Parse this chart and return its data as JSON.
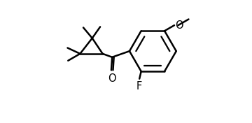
{
  "line_color": "#000000",
  "bg_color": "#ffffff",
  "line_width": 1.8,
  "font_size": 10.5,
  "figsize": [
    3.6,
    1.76
  ],
  "dpi": 100,
  "xlim": [
    0,
    9.5
  ],
  "ylim": [
    -1.8,
    5.2
  ]
}
